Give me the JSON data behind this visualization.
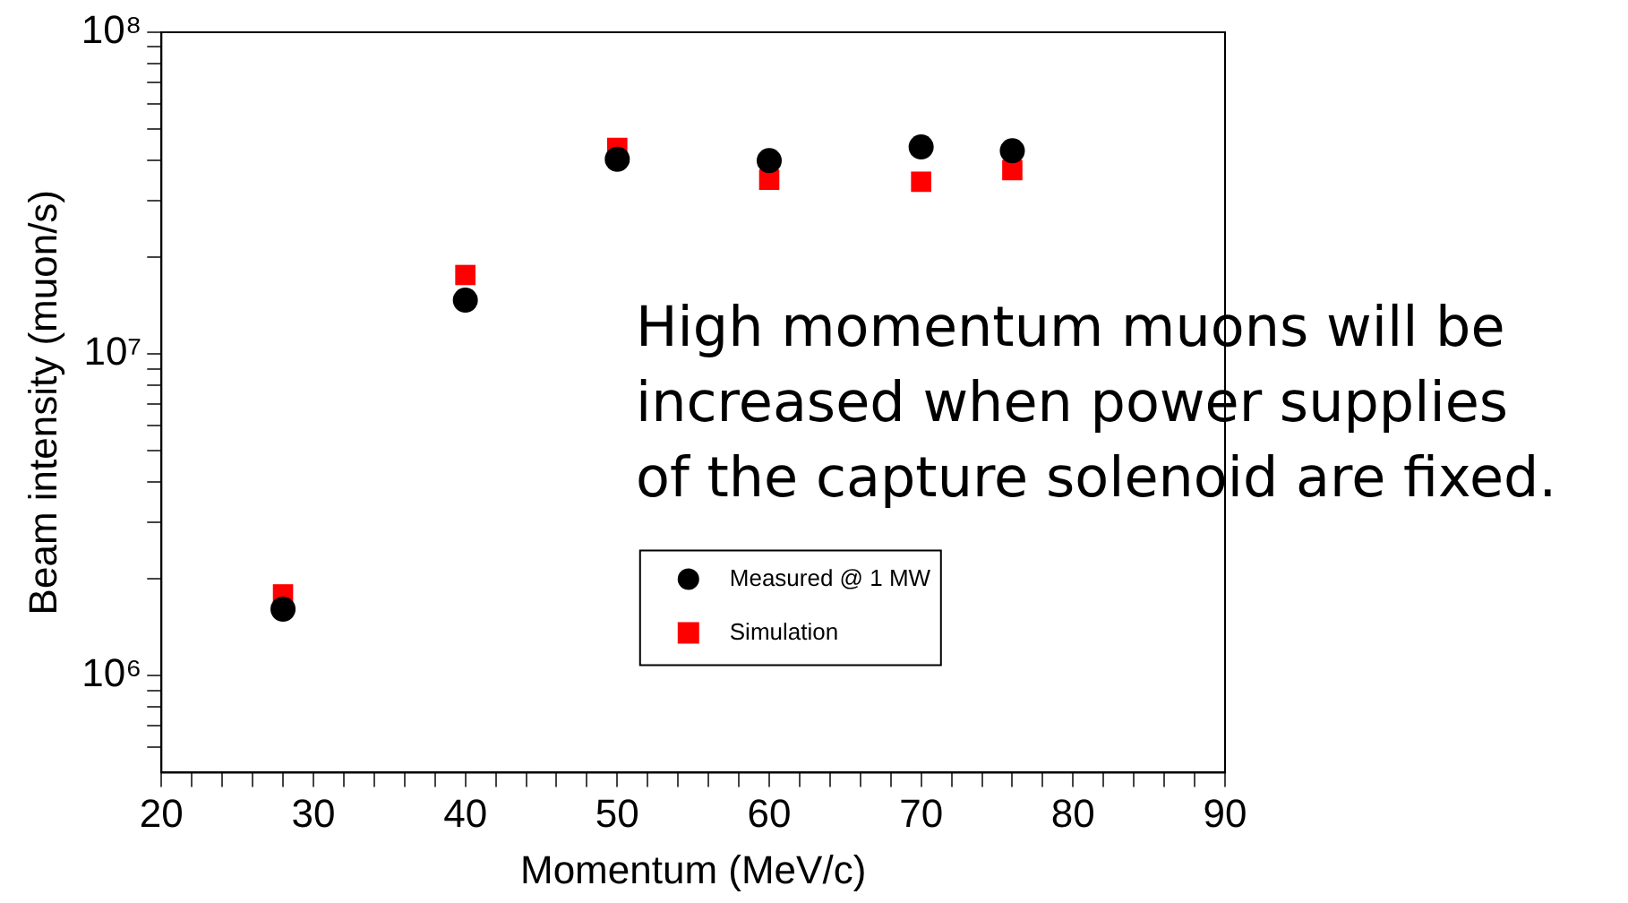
{
  "chart_data": {
    "type": "scatter",
    "xlabel": "Momentum (MeV/c)",
    "ylabel": "Beam intensity (muon/s)",
    "log": "y",
    "grid": false,
    "legend": "bottom",
    "x": [
      28,
      40,
      50,
      60,
      70,
      76
    ],
    "series": [
      {
        "name": "Measured @ 1 MW",
        "color": "#000000",
        "marker": "circle",
        "values": [
          1610000,
          14700000,
          40300000,
          39900000,
          44000000,
          42800000
        ]
      },
      {
        "name": "Simulation",
        "color": "#ff0000",
        "marker": "square",
        "values": [
          1790000,
          17600000,
          43700000,
          34800000,
          34300000,
          37300000
        ]
      }
    ],
    "xlim": [
      20,
      90
    ],
    "xticks": [
      20,
      {
        "value": 22,
        "label": null
      },
      {
        "value": 24,
        "label": null
      },
      {
        "value": 26,
        "label": null
      },
      {
        "value": 28,
        "label": null
      },
      30,
      {
        "value": 32,
        "label": null
      },
      {
        "value": 34,
        "label": null
      },
      {
        "value": 36,
        "label": null
      },
      {
        "value": 38,
        "label": null
      },
      40,
      {
        "value": 42,
        "label": null
      },
      {
        "value": 44,
        "label": null
      },
      {
        "value": 46,
        "label": null
      },
      {
        "value": 48,
        "label": null
      },
      50,
      {
        "value": 52,
        "label": null
      },
      {
        "value": 54,
        "label": null
      },
      {
        "value": 56,
        "label": null
      },
      {
        "value": 58,
        "label": null
      },
      60,
      {
        "value": 62,
        "label": null
      },
      {
        "value": 64,
        "label": null
      },
      {
        "value": 66,
        "label": null
      },
      {
        "value": 68,
        "label": null
      },
      70,
      {
        "value": 72,
        "label": null
      },
      {
        "value": 74,
        "label": null
      },
      {
        "value": 76,
        "label": null
      },
      {
        "value": 78,
        "label": null
      },
      80,
      {
        "value": 82,
        "label": null
      },
      {
        "value": 84,
        "label": null
      },
      {
        "value": 86,
        "label": null
      },
      {
        "value": 88,
        "label": null
      },
      90
    ],
    "ylim": [
      500000,
      100000000
    ],
    "yticks": [
      {
        "value": 600000,
        "label": null
      },
      {
        "value": 700000,
        "label": null
      },
      {
        "value": 800000,
        "label": null
      },
      {
        "value": 900000,
        "label": null
      },
      {
        "value": 1000000,
        "label": "10⁶"
      },
      {
        "value": 2000000,
        "label": null
      },
      {
        "value": 3000000,
        "label": null
      },
      {
        "value": 4000000,
        "label": null
      },
      {
        "value": 5000000,
        "label": null
      },
      {
        "value": 6000000,
        "label": null
      },
      {
        "value": 7000000,
        "label": null
      },
      {
        "value": 8000000,
        "label": null
      },
      {
        "value": 9000000,
        "label": null
      },
      {
        "value": 10000000,
        "label": "10⁷"
      },
      {
        "value": 20000000,
        "label": null
      },
      {
        "value": 30000000,
        "label": null
      },
      {
        "value": 40000000,
        "label": null
      },
      {
        "value": 50000000,
        "label": null
      },
      {
        "value": 60000000,
        "label": null
      },
      {
        "value": 70000000,
        "label": null
      },
      {
        "value": 80000000,
        "label": null
      },
      {
        "value": 90000000,
        "label": null
      },
      {
        "value": 100000000,
        "label": "10⁸"
      }
    ],
    "annotations": [
      "High momentum muons will be\nincreased when power supplies\nof the capture solenoid are fixed."
    ]
  }
}
